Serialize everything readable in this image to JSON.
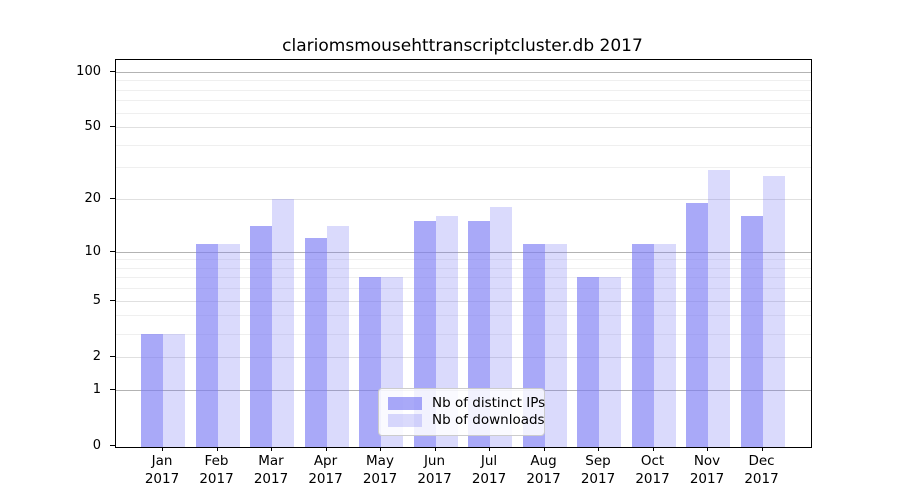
{
  "title": "clariomsmousehttranscriptcluster.db 2017",
  "legend": {
    "items": [
      {
        "label": "Nb of distinct IPs",
        "color": "rgba(120,120,244,0.64)"
      },
      {
        "label": "Nb of downloads",
        "color": "rgba(120,120,244,0.27)"
      }
    ]
  },
  "chart_data": {
    "type": "bar",
    "title": "clariomsmousehttranscriptcluster.db 2017",
    "categories": [
      "Jan",
      "Feb",
      "Mar",
      "Apr",
      "May",
      "Jun",
      "Jul",
      "Aug",
      "Sep",
      "Oct",
      "Nov",
      "Dec"
    ],
    "x_year_label": "2017",
    "series": [
      {
        "name": "Nb of distinct IPs",
        "color": "rgba(120,120,244,0.64)",
        "values": [
          3,
          11,
          14,
          12,
          7,
          15,
          15,
          11,
          7,
          11,
          19,
          16
        ]
      },
      {
        "name": "Nb of downloads",
        "color": "rgba(120,120,244,0.27)",
        "values": [
          3,
          11,
          20,
          14,
          7,
          16,
          18,
          11,
          7,
          11,
          29,
          27
        ]
      }
    ],
    "ylabel": "",
    "xlabel": "",
    "y_axis": {
      "scale": "log1p",
      "tick_values": [
        100,
        50,
        20,
        10,
        5,
        2,
        1,
        0
      ],
      "minor_gridlines": [
        3,
        4,
        6,
        7,
        8,
        9,
        30,
        40,
        60,
        70,
        80,
        90
      ],
      "range": [
        0,
        110
      ]
    },
    "grid": true,
    "legend_position": "bottom-center-inside"
  }
}
